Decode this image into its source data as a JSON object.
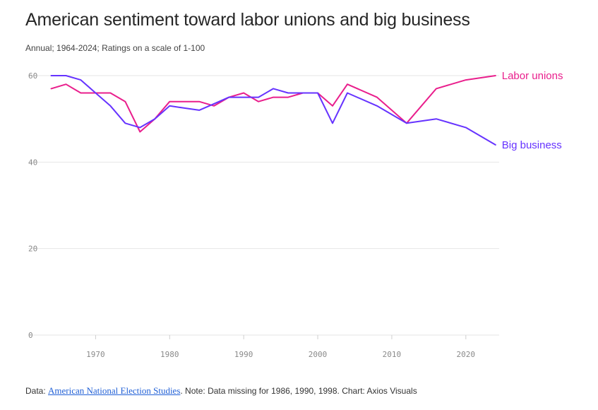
{
  "header": {
    "title": "American sentiment toward labor unions and big business",
    "subtitle": "Annual; 1964-2024; Ratings on a scale of 1-100"
  },
  "footer": {
    "prefix": "Data: ",
    "source_link": "American National Election Studies",
    "note": ". Note: Data missing for 1986, 1990, 1998. Chart: Axios Visuals"
  },
  "colors": {
    "labor_unions": "#e91e8c",
    "big_business": "#6633ff",
    "gridline": "#e6e6e6",
    "tick": "#8a8a8a"
  },
  "chart_data": {
    "type": "line",
    "title": "American sentiment toward labor unions and big business",
    "subtitle": "Annual; 1964-2024; Ratings on a scale of 1-100",
    "xlabel": "",
    "ylabel": "",
    "xlim": [
      1963,
      2024.5
    ],
    "ylim": [
      0,
      60
    ],
    "x_ticks": [
      1970,
      1980,
      1990,
      2000,
      2010,
      2020
    ],
    "y_ticks": [
      0,
      20,
      40,
      60
    ],
    "grid": "horizontal",
    "legend": "direct labels at line ends (right)",
    "series": [
      {
        "name": "Labor unions",
        "color": "#e91e8c",
        "x": [
          1964,
          1966,
          1968,
          1970,
          1972,
          1974,
          1976,
          1978,
          1980,
          1982,
          1984,
          1986,
          1988,
          1990,
          1992,
          1994,
          1996,
          1998,
          2000,
          2002,
          2004,
          2008,
          2012,
          2016,
          2020,
          2024
        ],
        "values": [
          57,
          58,
          56,
          56,
          56,
          54,
          47,
          50,
          54,
          54,
          54,
          53,
          55,
          56,
          54,
          55,
          55,
          56,
          56,
          53,
          58,
          55,
          49,
          57,
          59,
          60
        ]
      },
      {
        "name": "Big business",
        "color": "#6633ff",
        "x": [
          1964,
          1966,
          1968,
          1970,
          1972,
          1974,
          1976,
          1978,
          1980,
          1982,
          1984,
          1986,
          1988,
          1990,
          1992,
          1994,
          1996,
          1998,
          2000,
          2002,
          2004,
          2008,
          2012,
          2016,
          2020,
          2024
        ],
        "values": [
          60,
          60,
          59,
          56,
          53,
          49,
          48,
          50,
          53,
          52.5,
          52,
          53.5,
          55,
          55,
          55,
          57,
          56,
          56,
          56,
          49,
          56,
          53,
          49,
          50,
          48,
          44
        ]
      }
    ]
  }
}
